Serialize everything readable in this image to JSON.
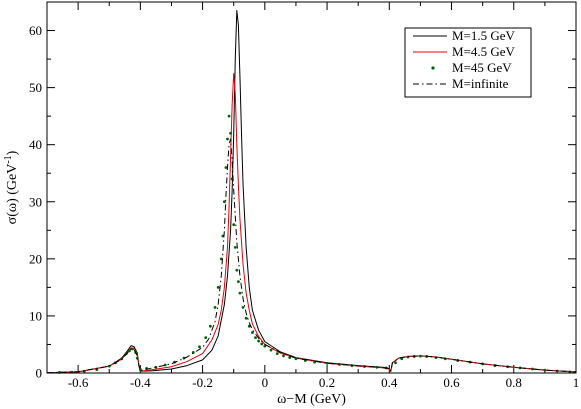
{
  "chart_data": {
    "type": "line",
    "title": "",
    "xlabel": "ω−M (GeV)",
    "ylabel": "σ(ω)  (GeV",
    "ylabel_sup": "-1",
    "ylabel_close": ")",
    "xlim": [
      -0.7,
      1.0
    ],
    "ylim": [
      0,
      65
    ],
    "grid": false,
    "legend_position": "top-right",
    "x_ticks": [
      {
        "value": -0.6,
        "label": "-0.6"
      },
      {
        "value": -0.4,
        "label": "-0.4"
      },
      {
        "value": -0.2,
        "label": "-0.2"
      },
      {
        "value": 0,
        "label": "0"
      },
      {
        "value": 0.2,
        "label": "0.2"
      },
      {
        "value": 0.4,
        "label": "0.4"
      },
      {
        "value": 0.6,
        "label": "0.6"
      },
      {
        "value": 0.8,
        "label": "0.8"
      },
      {
        "value": 1.0,
        "label": "1"
      }
    ],
    "y_ticks": [
      {
        "value": 0,
        "label": "0"
      },
      {
        "value": 10,
        "label": "10"
      },
      {
        "value": 20,
        "label": "20"
      },
      {
        "value": 30,
        "label": "30"
      },
      {
        "value": 40,
        "label": "40"
      },
      {
        "value": 50,
        "label": "50"
      },
      {
        "value": 60,
        "label": "60"
      }
    ],
    "series": [
      {
        "name": "M=1.5 GeV",
        "color": "#000000",
        "style": "solid",
        "points": [
          [
            -0.7,
            0.05
          ],
          [
            -0.6,
            0.2
          ],
          [
            -0.5,
            1.2
          ],
          [
            -0.46,
            2.6
          ],
          [
            -0.44,
            4.0
          ],
          [
            -0.43,
            4.8
          ],
          [
            -0.42,
            4.6
          ],
          [
            -0.41,
            3.5
          ],
          [
            -0.405,
            1.5
          ],
          [
            -0.4,
            0.3
          ],
          [
            -0.36,
            0.4
          ],
          [
            -0.3,
            0.7
          ],
          [
            -0.25,
            1.3
          ],
          [
            -0.2,
            2.3
          ],
          [
            -0.17,
            4.0
          ],
          [
            -0.15,
            6.5
          ],
          [
            -0.13,
            12
          ],
          [
            -0.12,
            17
          ],
          [
            -0.11,
            25
          ],
          [
            -0.105,
            32
          ],
          [
            -0.1,
            42
          ],
          [
            -0.095,
            55
          ],
          [
            -0.09,
            63.5
          ],
          [
            -0.085,
            61
          ],
          [
            -0.08,
            52
          ],
          [
            -0.075,
            42
          ],
          [
            -0.07,
            33
          ],
          [
            -0.06,
            22
          ],
          [
            -0.05,
            15
          ],
          [
            -0.04,
            11
          ],
          [
            -0.02,
            7.5
          ],
          [
            0,
            5.5
          ],
          [
            0.05,
            3.7
          ],
          [
            0.1,
            2.7
          ],
          [
            0.2,
            1.8
          ],
          [
            0.3,
            1.3
          ],
          [
            0.38,
            1.0
          ],
          [
            0.4,
            0.8
          ],
          [
            0.405,
            0.3
          ],
          [
            0.41,
            1.8
          ],
          [
            0.43,
            2.6
          ],
          [
            0.46,
            2.9
          ],
          [
            0.5,
            3.0
          ],
          [
            0.55,
            2.8
          ],
          [
            0.6,
            2.4
          ],
          [
            0.7,
            1.6
          ],
          [
            0.8,
            1.0
          ],
          [
            0.9,
            0.5
          ],
          [
            1.0,
            0.2
          ]
        ]
      },
      {
        "name": "M=4.5 GeV",
        "color": "#e8000b",
        "style": "solid",
        "points": [
          [
            -0.7,
            0.05
          ],
          [
            -0.6,
            0.2
          ],
          [
            -0.5,
            1.2
          ],
          [
            -0.46,
            2.4
          ],
          [
            -0.44,
            3.7
          ],
          [
            -0.43,
            4.4
          ],
          [
            -0.42,
            4.3
          ],
          [
            -0.41,
            3.2
          ],
          [
            -0.405,
            1.4
          ],
          [
            -0.4,
            0.3
          ],
          [
            -0.36,
            0.6
          ],
          [
            -0.3,
            1.1
          ],
          [
            -0.25,
            2.0
          ],
          [
            -0.2,
            3.4
          ],
          [
            -0.17,
            5.8
          ],
          [
            -0.15,
            8.5
          ],
          [
            -0.14,
            11
          ],
          [
            -0.13,
            15
          ],
          [
            -0.12,
            22
          ],
          [
            -0.115,
            29
          ],
          [
            -0.11,
            38
          ],
          [
            -0.105,
            47
          ],
          [
            -0.1,
            52.5
          ],
          [
            -0.095,
            49
          ],
          [
            -0.09,
            40
          ],
          [
            -0.085,
            33
          ],
          [
            -0.08,
            27
          ],
          [
            -0.07,
            19
          ],
          [
            -0.06,
            14
          ],
          [
            -0.05,
            11
          ],
          [
            -0.04,
            8.6
          ],
          [
            -0.02,
            6.4
          ],
          [
            0,
            5.0
          ],
          [
            0.05,
            3.5
          ],
          [
            0.1,
            2.6
          ],
          [
            0.2,
            1.7
          ],
          [
            0.3,
            1.2
          ],
          [
            0.38,
            0.9
          ],
          [
            0.4,
            0.7
          ],
          [
            0.405,
            0.3
          ],
          [
            0.41,
            1.8
          ],
          [
            0.43,
            2.6
          ],
          [
            0.46,
            2.9
          ],
          [
            0.5,
            3.0
          ],
          [
            0.55,
            2.8
          ],
          [
            0.6,
            2.4
          ],
          [
            0.7,
            1.6
          ],
          [
            0.8,
            1.0
          ],
          [
            0.9,
            0.5
          ],
          [
            1.0,
            0.2
          ]
        ]
      },
      {
        "name": "M=45 GeV",
        "color": "#006400",
        "style": "dots",
        "points": [
          [
            -0.66,
            0.1
          ],
          [
            -0.62,
            0.15
          ],
          [
            -0.58,
            0.3
          ],
          [
            -0.54,
            0.6
          ],
          [
            -0.5,
            1.2
          ],
          [
            -0.48,
            1.8
          ],
          [
            -0.46,
            2.5
          ],
          [
            -0.445,
            3.4
          ],
          [
            -0.435,
            3.9
          ],
          [
            -0.425,
            4.2
          ],
          [
            -0.415,
            3.6
          ],
          [
            -0.41,
            2.6
          ],
          [
            -0.4,
            0.6
          ],
          [
            -0.38,
            0.8
          ],
          [
            -0.35,
            1.0
          ],
          [
            -0.32,
            1.4
          ],
          [
            -0.29,
            1.9
          ],
          [
            -0.26,
            2.6
          ],
          [
            -0.23,
            3.6
          ],
          [
            -0.21,
            4.6
          ],
          [
            -0.19,
            6.2
          ],
          [
            -0.175,
            8.2
          ],
          [
            -0.16,
            11.5
          ],
          [
            -0.15,
            15
          ],
          [
            -0.14,
            20
          ],
          [
            -0.135,
            24
          ],
          [
            -0.13,
            30
          ],
          [
            -0.125,
            36
          ],
          [
            -0.12,
            41
          ],
          [
            -0.115,
            45
          ],
          [
            -0.11,
            42
          ],
          [
            -0.105,
            34
          ],
          [
            -0.1,
            26
          ],
          [
            -0.095,
            22
          ],
          [
            -0.09,
            18
          ],
          [
            -0.085,
            16
          ],
          [
            -0.08,
            14
          ],
          [
            -0.07,
            11.5
          ],
          [
            -0.06,
            9.6
          ],
          [
            -0.05,
            8.2
          ],
          [
            -0.04,
            7.1
          ],
          [
            -0.03,
            6.2
          ],
          [
            -0.02,
            5.6
          ],
          [
            -0.01,
            5.1
          ],
          [
            0,
            4.7
          ],
          [
            0.02,
            4.0
          ],
          [
            0.04,
            3.4
          ],
          [
            0.06,
            3.0
          ],
          [
            0.08,
            2.7
          ],
          [
            0.1,
            2.5
          ],
          [
            0.13,
            2.2
          ],
          [
            0.16,
            1.9
          ],
          [
            0.2,
            1.7
          ],
          [
            0.24,
            1.5
          ],
          [
            0.28,
            1.3
          ],
          [
            0.32,
            1.15
          ],
          [
            0.36,
            1.0
          ],
          [
            0.39,
            0.9
          ],
          [
            0.42,
            1.8
          ],
          [
            0.44,
            2.5
          ],
          [
            0.46,
            2.8
          ],
          [
            0.48,
            2.9
          ],
          [
            0.5,
            2.95
          ],
          [
            0.52,
            2.9
          ],
          [
            0.55,
            2.7
          ],
          [
            0.58,
            2.5
          ],
          [
            0.62,
            2.2
          ],
          [
            0.66,
            1.9
          ],
          [
            0.7,
            1.6
          ],
          [
            0.74,
            1.3
          ],
          [
            0.78,
            1.1
          ],
          [
            0.82,
            0.9
          ],
          [
            0.86,
            0.7
          ],
          [
            0.9,
            0.5
          ],
          [
            0.94,
            0.35
          ],
          [
            0.98,
            0.2
          ]
        ]
      },
      {
        "name": "M=infinite",
        "color": "#000000",
        "style": "dashdot",
        "points": [
          [
            -0.7,
            0.05
          ],
          [
            -0.6,
            0.25
          ],
          [
            -0.5,
            1.2
          ],
          [
            -0.46,
            2.4
          ],
          [
            -0.44,
            3.6
          ],
          [
            -0.43,
            4.2
          ],
          [
            -0.42,
            4.1
          ],
          [
            -0.41,
            3.0
          ],
          [
            -0.405,
            1.3
          ],
          [
            -0.4,
            0.4
          ],
          [
            -0.36,
            0.9
          ],
          [
            -0.3,
            1.6
          ],
          [
            -0.25,
            2.8
          ],
          [
            -0.2,
            4.5
          ],
          [
            -0.18,
            6.0
          ],
          [
            -0.16,
            9.0
          ],
          [
            -0.15,
            12
          ],
          [
            -0.14,
            17
          ],
          [
            -0.13,
            25
          ],
          [
            -0.125,
            31
          ],
          [
            -0.12,
            36
          ],
          [
            -0.115,
            40
          ],
          [
            -0.11,
            41
          ],
          [
            -0.105,
            37
          ],
          [
            -0.1,
            32
          ],
          [
            -0.09,
            23
          ],
          [
            -0.08,
            17
          ],
          [
            -0.07,
            13
          ],
          [
            -0.06,
            10.5
          ],
          [
            -0.05,
            8.8
          ],
          [
            -0.04,
            7.6
          ],
          [
            -0.02,
            6.1
          ],
          [
            0,
            5.0
          ],
          [
            0.05,
            3.6
          ],
          [
            0.1,
            2.6
          ],
          [
            0.2,
            1.7
          ],
          [
            0.3,
            1.25
          ],
          [
            0.38,
            0.95
          ],
          [
            0.4,
            0.75
          ],
          [
            0.405,
            0.3
          ],
          [
            0.41,
            1.8
          ],
          [
            0.43,
            2.6
          ],
          [
            0.46,
            2.9
          ],
          [
            0.5,
            3.0
          ],
          [
            0.55,
            2.8
          ],
          [
            0.6,
            2.4
          ],
          [
            0.7,
            1.6
          ],
          [
            0.8,
            1.0
          ],
          [
            0.9,
            0.5
          ],
          [
            1.0,
            0.2
          ]
        ]
      }
    ]
  }
}
